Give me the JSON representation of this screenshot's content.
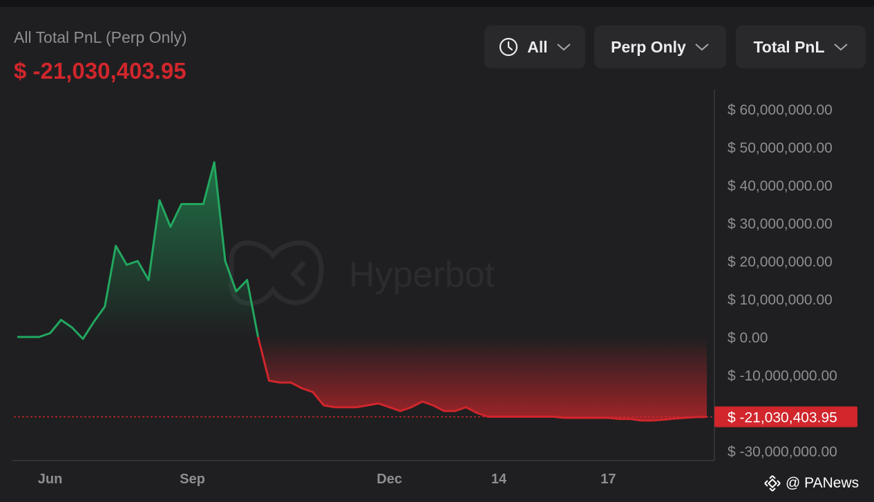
{
  "header": {
    "title": "All Total PnL (Perp Only)",
    "value": "$ -21,030,403.95"
  },
  "filters": {
    "time": "All",
    "market": "Perp Only",
    "metric": "Total PnL"
  },
  "watermark": {
    "text": "Hyperbot"
  },
  "footer": {
    "text": "@ PANews"
  },
  "colors": {
    "positive": "#22a860",
    "negative": "#d0262c",
    "background": "#1f1f21"
  },
  "chart_data": {
    "type": "area",
    "ylim": [
      -30000000,
      60000000
    ],
    "y_ticks": [
      60000000,
      50000000,
      40000000,
      30000000,
      20000000,
      10000000,
      0,
      -10000000,
      -20000000,
      -30000000
    ],
    "y_tick_labels": [
      "$ 60,000,000.00",
      "$ 50,000,000.00",
      "$ 40,000,000.00",
      "$ 30,000,000.00",
      "$ 20,000,000.00",
      "$ 10,000,000.00",
      "$ 0.00",
      "$ -10,000,000.00",
      "",
      "$ -30,000,000.00"
    ],
    "x_ticks": [
      {
        "x": 3,
        "label": "Jun"
      },
      {
        "x": 16,
        "label": "Sep"
      },
      {
        "x": 34,
        "label": "Dec"
      },
      {
        "x": 44,
        "label": "14"
      },
      {
        "x": 54,
        "label": "17"
      }
    ],
    "current_value": -21030403.95,
    "current_label": "$ -21,030,403.95",
    "x_max": 63,
    "series": [
      {
        "values": [
          0,
          0,
          0,
          1000000,
          4500000,
          2500000,
          -500000,
          4000000,
          8000000,
          24000000,
          19000000,
          20000000,
          15000000,
          36000000,
          29000000,
          35000000,
          35000000,
          35000000,
          46000000,
          20000000,
          12000000,
          15000000,
          0,
          -11500000,
          -12000000,
          -12000000,
          -13500000,
          -14500000,
          -18000000,
          -18500000,
          -18500000,
          -18500000,
          -18000000,
          -17500000,
          -18500000,
          -19500000,
          -18500000,
          -17000000,
          -18000000,
          -19500000,
          -19500000,
          -18500000,
          -20000000,
          -21000000,
          -21000000,
          -21000000,
          -21000000,
          -21000000,
          -21000000,
          -21000000,
          -21300000,
          -21300000,
          -21300000,
          -21300000,
          -21300000,
          -21600000,
          -21600000,
          -22000000,
          -22000000,
          -21800000,
          -21500000,
          -21300000,
          -21100000,
          -21030404
        ]
      }
    ]
  }
}
